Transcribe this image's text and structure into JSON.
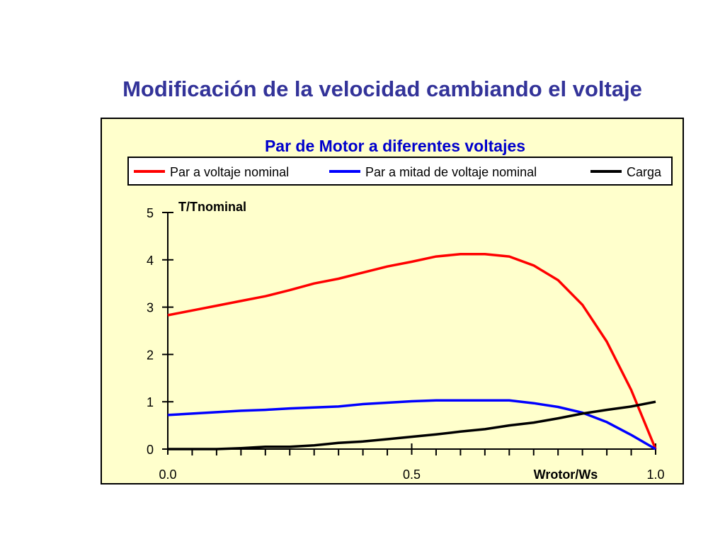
{
  "slide": {
    "title": "Modificación de la velocidad cambiando el voltaje"
  },
  "chart_data": {
    "type": "line",
    "title": "Par de Motor a diferentes voltajes",
    "xlabel": "Wrotor/Ws",
    "ylabel": "T/Tnominal",
    "xlim": [
      0,
      1
    ],
    "ylim": [
      0,
      5
    ],
    "x_tick_labels": [
      "0.0",
      "0.5",
      "1.0"
    ],
    "y_tick_labels": [
      "0",
      "1",
      "2",
      "3",
      "4",
      "5"
    ],
    "grid": false,
    "legend_position": "top",
    "x": [
      0,
      0.05,
      0.1,
      0.15,
      0.2,
      0.25,
      0.3,
      0.35,
      0.4,
      0.45,
      0.5,
      0.55,
      0.6,
      0.65,
      0.7,
      0.75,
      0.8,
      0.85,
      0.9,
      0.95,
      1.0
    ],
    "series": [
      {
        "name": "Par a voltaje nominal",
        "color": "#ff0000",
        "values": [
          2.83,
          2.93,
          3.03,
          3.13,
          3.23,
          3.36,
          3.5,
          3.6,
          3.73,
          3.86,
          3.96,
          4.07,
          4.12,
          4.12,
          4.07,
          3.88,
          3.57,
          3.05,
          2.27,
          1.25,
          0
        ]
      },
      {
        "name": "Par a mitad de voltaje nominal",
        "color": "#0000ff",
        "values": [
          0.72,
          0.75,
          0.78,
          0.81,
          0.83,
          0.86,
          0.88,
          0.9,
          0.95,
          0.98,
          1.01,
          1.03,
          1.03,
          1.03,
          1.03,
          0.97,
          0.89,
          0.77,
          0.57,
          0.3,
          0
        ]
      },
      {
        "name": "Carga",
        "color": "#000000",
        "values": [
          0,
          0,
          0,
          0.02,
          0.05,
          0.05,
          0.08,
          0.13,
          0.16,
          0.21,
          0.26,
          0.31,
          0.37,
          0.42,
          0.5,
          0.56,
          0.65,
          0.75,
          0.83,
          0.9,
          1.0
        ]
      }
    ]
  }
}
